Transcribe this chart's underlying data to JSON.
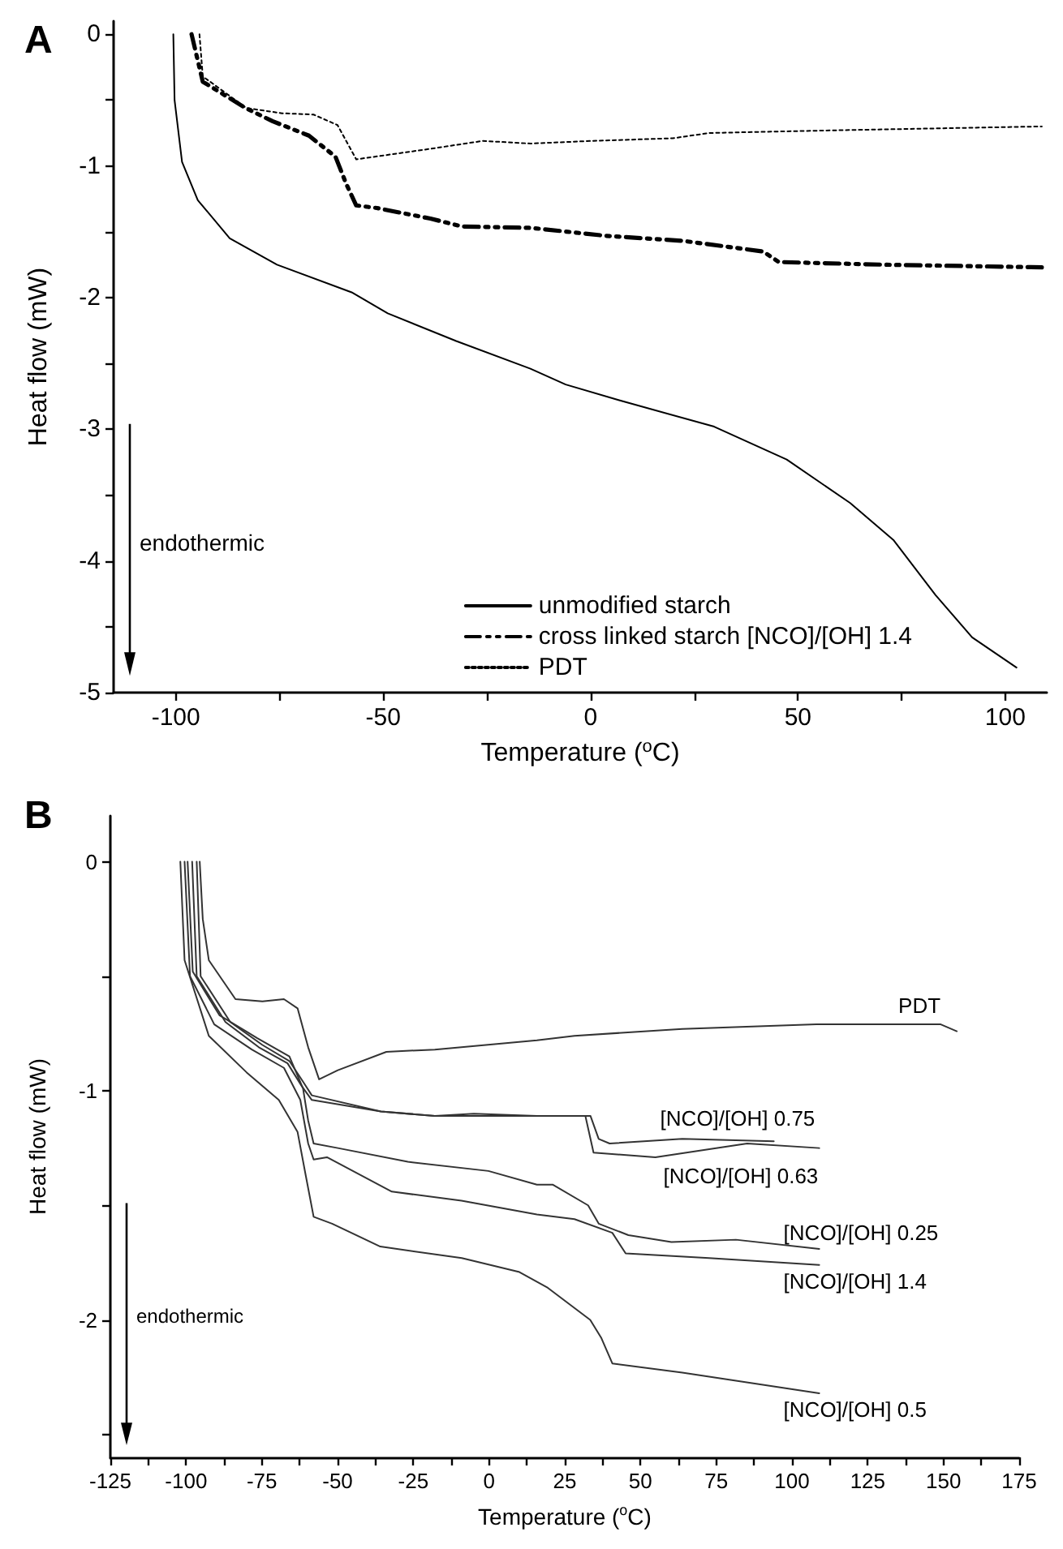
{
  "chart_data": [
    {
      "type": "line",
      "title": "A",
      "xlabel": "Temperature ($^{o}$C)",
      "ylabel": "Heat flow (mW)",
      "annotations": [
        "endothermic"
      ],
      "legend": "bottom right",
      "xlim": [
        -115,
        110
      ],
      "ylim": [
        -5,
        0.1
      ],
      "xticks": [
        -100,
        {
          "value": -75,
          "label": null
        },
        -50,
        {
          "value": -25,
          "label": null
        },
        0,
        {
          "value": 25,
          "label": null
        },
        50,
        {
          "value": 75,
          "label": null
        },
        100
      ],
      "yticks": [
        -5,
        {
          "value": -4.5,
          "label": null
        },
        -4,
        {
          "value": -3.5,
          "label": null
        },
        -3,
        {
          "value": -2.5,
          "label": null
        },
        -2,
        {
          "value": -1.5,
          "label": null
        },
        -1,
        {
          "value": -0.5,
          "label": null
        },
        0
      ],
      "series": [
        {
          "name": "unmodified starch",
          "color": "#000000",
          "line_style": "solid",
          "x": [
            -100.6,
            -100.3,
            -98.5,
            -94.7,
            -87,
            -75.6,
            -57.6,
            -48.9,
            -32.4,
            -14.5,
            -6,
            6.9,
            29.8,
            47.3,
            62.6,
            73,
            83.2,
            92,
            102.7
          ],
          "values": [
            0,
            -0.5,
            -0.97,
            -1.26,
            -1.55,
            -1.75,
            -1.96,
            -2.12,
            -2.33,
            -2.54,
            -2.66,
            -2.78,
            -2.98,
            -3.23,
            -3.56,
            -3.84,
            -4.26,
            -4.58,
            -4.81
          ]
        },
        {
          "name": "cross linked starch [NCO]/[OH] 1.4",
          "color": "#000000",
          "line_style": "dashed",
          "x": [
            -96.2,
            -93.5,
            -83.2,
            -76.7,
            -67.9,
            -61.5,
            -59,
            -56.5,
            -51.5,
            -38.6,
            -31,
            -14.5,
            3.4,
            22.5,
            41.6,
            45.4,
            70.6,
            108.8
          ],
          "values": [
            0,
            -0.36,
            -0.56,
            -0.66,
            -0.77,
            -0.93,
            -1.13,
            -1.3,
            -1.32,
            -1.4,
            -1.46,
            -1.47,
            -1.53,
            -1.57,
            -1.65,
            -1.73,
            -1.75,
            -1.77
          ]
        },
        {
          "name": "PDT",
          "color": "#000000",
          "line_style": "dotted",
          "x": [
            -94.3,
            -93.5,
            -83,
            -74.4,
            -66.8,
            -61,
            -56.5,
            -38.6,
            -26,
            -14.5,
            0.4,
            19.8,
            28.6,
            58,
            108.8
          ],
          "values": [
            0,
            -0.32,
            -0.56,
            -0.6,
            -0.61,
            -0.69,
            -0.95,
            -0.87,
            -0.81,
            -0.83,
            -0.81,
            -0.79,
            -0.75,
            -0.73,
            -0.7
          ]
        }
      ]
    },
    {
      "type": "line",
      "title": "B",
      "xlabel": "Temperature ($^{o}$C)",
      "ylabel": "Heat flow (mW)",
      "annotations": [
        "endothermic"
      ],
      "xlim": [
        -125,
        175
      ],
      "ylim": [
        -2.6,
        0.2
      ],
      "xticks": [
        -125,
        {
          "value": -112.5,
          "label": null
        },
        -100,
        {
          "value": -87.5,
          "label": null
        },
        -75,
        {
          "value": -62.5,
          "label": null
        },
        -50,
        {
          "value": -37.5,
          "label": null
        },
        -25,
        {
          "value": -12.5,
          "label": null
        },
        0,
        {
          "value": 12.5,
          "label": null
        },
        25,
        {
          "value": 37.5,
          "label": null
        },
        50,
        {
          "value": 62.5,
          "label": null
        },
        75,
        {
          "value": 87.5,
          "label": null
        },
        100,
        {
          "value": 112.5,
          "label": null
        },
        125,
        {
          "value": 137.5,
          "label": null
        },
        150,
        {
          "value": 162.5,
          "label": null
        },
        175
      ],
      "yticks": [
        {
          "value": -2.5,
          "label": null
        },
        -2,
        {
          "value": -1.5,
          "label": null
        },
        -1,
        {
          "value": -0.5,
          "label": null
        },
        0
      ],
      "series": [
        {
          "name": "PDT",
          "color": "#333333",
          "x": [
            -95.5,
            -94.5,
            -92.5,
            -83.7,
            -74.8,
            -67.7,
            -63.2,
            -59.7,
            -56.1,
            -49.9,
            -33.9,
            -17.9,
            15.8,
            28.2,
            63.8,
            108.1,
            149.1,
            154.4
          ],
          "values": [
            0,
            -0.25,
            -0.43,
            -0.6,
            -0.61,
            -0.6,
            -0.64,
            -0.81,
            -0.95,
            -0.91,
            -0.83,
            -0.82,
            -0.78,
            -0.76,
            -0.73,
            -0.71,
            -0.71,
            -0.74
          ]
        },
        {
          "name": "[NCO]/[OH] 0.75",
          "color": "#333333",
          "x": [
            -96.5,
            -95.2,
            -85.4,
            -74.8,
            -65.9,
            -61.4,
            -58.5,
            -35.7,
            -17.9,
            -5,
            15.8,
            28.2,
            33.5,
            36.2,
            39.8,
            63.8,
            94
          ],
          "values": [
            0,
            -0.5,
            -0.7,
            -0.8,
            -0.87,
            -0.96,
            -1.02,
            -1.09,
            -1.11,
            -1.1,
            -1.11,
            -1.11,
            -1.11,
            -1.21,
            -1.23,
            -1.21,
            -1.22
          ]
        },
        {
          "name": "[NCO]/[OH] 0.63",
          "color": "#333333",
          "x": [
            -98,
            -96.5,
            -87,
            -76,
            -66.5,
            -61.8,
            -58.5,
            -35.7,
            -17.9,
            15.8,
            28.2,
            31.8,
            34.5,
            54.9,
            85.2,
            109
          ],
          "values": [
            0,
            -0.5,
            -0.7,
            -0.81,
            -0.88,
            -0.98,
            -1.04,
            -1.09,
            -1.11,
            -1.11,
            -1.11,
            -1.11,
            -1.27,
            -1.29,
            -1.23,
            -1.25
          ]
        },
        {
          "name": "[NCO]/[OH] 0.25",
          "color": "#333333",
          "x": [
            -99.5,
            -97.8,
            -89,
            -76.5,
            -65.9,
            -61.4,
            -59.7,
            -57.9,
            -49.9,
            -26.8,
            -0.2,
            15.8,
            21.1,
            32.7,
            36.2,
            46,
            60.2,
            81.5,
            109
          ],
          "values": [
            0,
            -0.48,
            -0.67,
            -0.77,
            -0.85,
            -0.99,
            -1.13,
            -1.23,
            -1.25,
            -1.31,
            -1.35,
            -1.41,
            -1.41,
            -1.5,
            -1.58,
            -1.63,
            -1.66,
            -1.65,
            -1.69
          ]
        },
        {
          "name": "[NCO]/[OH] 1.4",
          "color": "#333333",
          "x": [
            -100.5,
            -98.7,
            -90.7,
            -78.3,
            -67.7,
            -62.3,
            -59.7,
            -57.9,
            -53.5,
            -32.1,
            -9.1,
            15.8,
            28.2,
            40.7,
            45.1,
            72.6,
            109
          ],
          "values": [
            0,
            -0.5,
            -0.71,
            -0.82,
            -0.9,
            -1.04,
            -1.23,
            -1.3,
            -1.29,
            -1.44,
            -1.48,
            -1.54,
            -1.56,
            -1.62,
            -1.71,
            -1.73,
            -1.76
          ]
        },
        {
          "name": "[NCO]/[OH] 0.5",
          "color": "#333333",
          "x": [
            -101.9,
            -100.5,
            -92.5,
            -80,
            -69.4,
            -63.2,
            -60.5,
            -57.9,
            -51.8,
            -35.9,
            -9,
            9.8,
            19.4,
            33.4,
            37.1,
            40.7,
            63.8,
            109
          ],
          "values": [
            0,
            -0.43,
            -0.76,
            -0.92,
            -1.04,
            -1.18,
            -1.37,
            -1.55,
            -1.58,
            -1.68,
            -1.73,
            -1.79,
            -1.86,
            -2,
            -2.08,
            -2.19,
            -2.23,
            -2.32
          ]
        }
      ]
    }
  ]
}
